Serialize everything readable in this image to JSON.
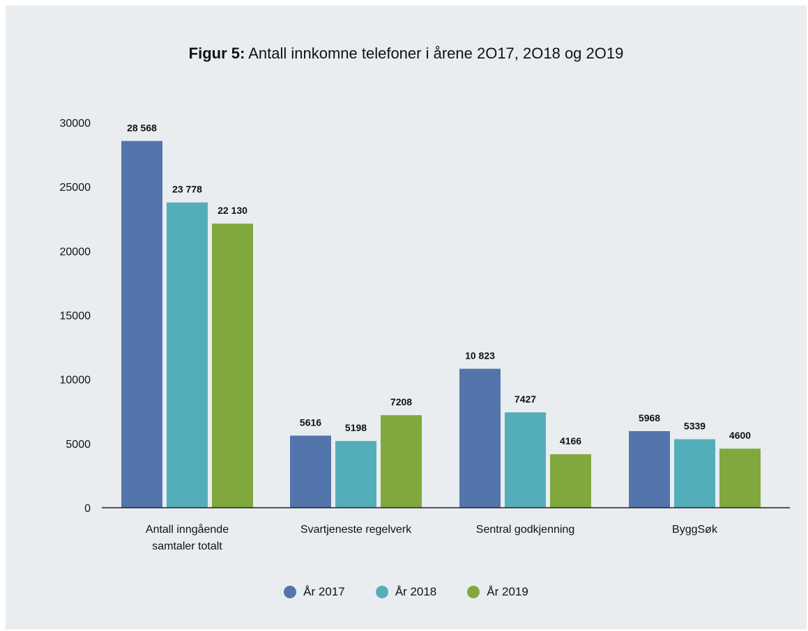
{
  "title": {
    "prefix": "Figur 5:",
    "text": "Antall innkomne telefoner i årene 2O17, 2O18 og 2O19"
  },
  "chart_data": {
    "type": "bar",
    "categories": [
      [
        "Antall inngående",
        "samtaler totalt"
      ],
      [
        "Svartjeneste regelverk"
      ],
      [
        "Sentral godkjenning"
      ],
      [
        "ByggSøk"
      ]
    ],
    "series": [
      {
        "name": "År 2017",
        "color": "#5474ac",
        "values": [
          28568,
          5616,
          10823,
          5968
        ],
        "labels": [
          "28 568",
          "5616",
          "10 823",
          "5968"
        ]
      },
      {
        "name": "År 2018",
        "color": "#54aeba",
        "values": [
          23778,
          5198,
          7427,
          5339
        ],
        "labels": [
          "23 778",
          "5198",
          "7427",
          "5339"
        ]
      },
      {
        "name": "År 2019",
        "color": "#80a83e",
        "values": [
          22130,
          7208,
          4166,
          4600
        ],
        "labels": [
          "22 130",
          "7208",
          "4166",
          "4600"
        ]
      }
    ],
    "yticks": [
      0,
      5000,
      10000,
      15000,
      20000,
      25000,
      30000
    ],
    "ylim": [
      0,
      30000
    ],
    "grid": false,
    "legend_position": "bottom"
  }
}
